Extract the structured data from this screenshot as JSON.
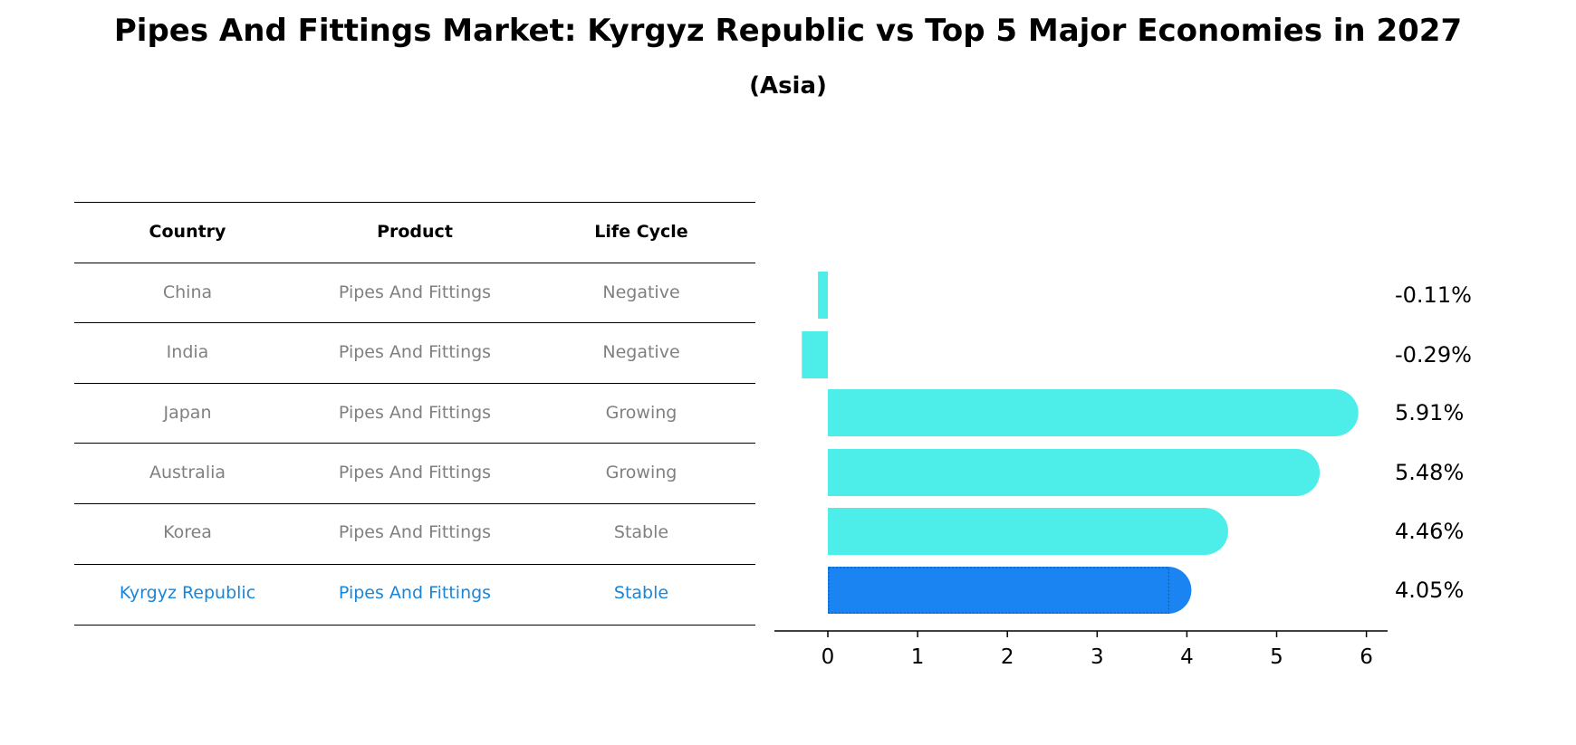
{
  "title": "Pipes And Fittings Market: Kyrgyz Republic vs Top 5 Major Economies in 2027",
  "subtitle": "(Asia)",
  "table": {
    "headers": [
      "Country",
      "Product",
      "Life Cycle"
    ],
    "rows": [
      {
        "country": "China",
        "product": "Pipes And Fittings",
        "life_cycle": "Negative",
        "highlight": false
      },
      {
        "country": "India",
        "product": "Pipes And Fittings",
        "life_cycle": "Negative",
        "highlight": false
      },
      {
        "country": "Japan",
        "product": "Pipes And Fittings",
        "life_cycle": "Growing",
        "highlight": false
      },
      {
        "country": "Australia",
        "product": "Pipes And Fittings",
        "life_cycle": "Growing",
        "highlight": false
      },
      {
        "country": "Korea",
        "product": "Pipes And Fittings",
        "life_cycle": "Stable",
        "highlight": false
      },
      {
        "country": "Kyrgyz Republic",
        "product": "Pipes And Fittings",
        "life_cycle": "Stable",
        "highlight": true
      }
    ]
  },
  "colors": {
    "bar": "#4dede9",
    "highlight_bar": "#1a84f2",
    "row_text": "#808080",
    "highlight_text": "#1a86d9"
  },
  "chart_data": {
    "type": "bar",
    "orientation": "horizontal",
    "categories": [
      "China",
      "India",
      "Japan",
      "Australia",
      "Korea",
      "Kyrgyz Republic"
    ],
    "values": [
      -0.11,
      -0.29,
      5.91,
      5.48,
      4.46,
      4.05
    ],
    "value_labels": [
      "-0.11%",
      "-0.29%",
      "5.91%",
      "5.48%",
      "4.46%",
      "4.05%"
    ],
    "highlight_index": 5,
    "xlim": [
      -0.6,
      6.2
    ],
    "xticks": [
      0,
      1,
      2,
      3,
      4,
      5,
      6
    ],
    "grid": false
  }
}
